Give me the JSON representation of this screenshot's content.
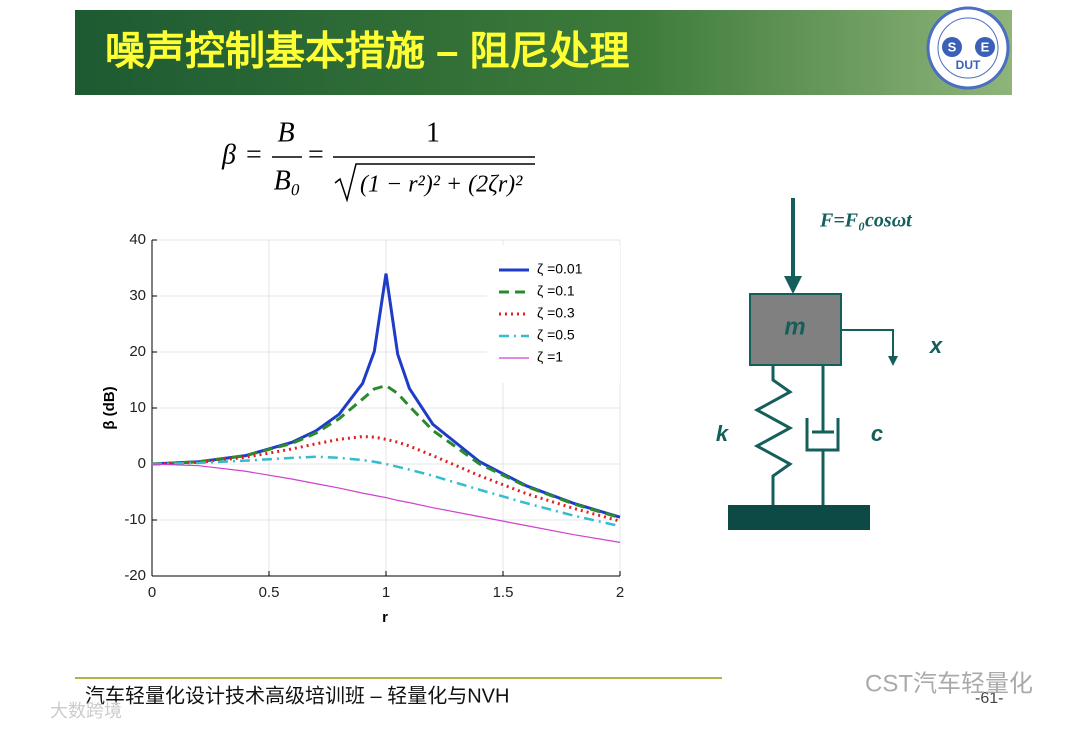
{
  "slide": {
    "title": "噪声控制基本措施 – 阻尼处理",
    "logo": "DUT",
    "logo_s": "S",
    "logo_e": "E",
    "footer": "汽车轻量化设计技术高级培训班 – 轻量化与NVH",
    "page": "-61-",
    "watermark": "CST汽车轻量化",
    "watermark2": "大数跨境"
  },
  "formula": {
    "lhs": "β",
    "eq": "=",
    "num1": "B",
    "den1": "B₀",
    "num2": "1",
    "den2": "(1 − r²)² + (2ζr)²"
  },
  "diagram": {
    "force": "F=F₀cosωt",
    "mass": "m",
    "displacement": "x",
    "spring": "k",
    "damper": "c"
  },
  "chart_data": {
    "type": "line",
    "xlabel": "r",
    "ylabel": "β (dB)",
    "x": [
      0,
      0.2,
      0.4,
      0.6,
      0.7,
      0.8,
      0.9,
      0.95,
      1,
      1.05,
      1.1,
      1.2,
      1.4,
      1.6,
      1.8,
      2
    ],
    "series": [
      {
        "name": "ζ =0.01",
        "color": "#1f3cc8",
        "dash": "solid",
        "values": [
          0,
          0.4,
          1.5,
          3.9,
          5.9,
          8.9,
          14.4,
          20.1,
          34.0,
          19.6,
          13.5,
          7.1,
          0.4,
          -3.9,
          -7.0,
          -9.5
        ]
      },
      {
        "name": "ζ =0.1",
        "color": "#2b8a2b",
        "dash": "dashed",
        "values": [
          0,
          0.4,
          1.5,
          3.7,
          5.5,
          8.1,
          11.6,
          13.4,
          14.0,
          12.6,
          10.3,
          6.0,
          0,
          -4.0,
          -7.1,
          -9.6
        ]
      },
      {
        "name": "ζ =0.3",
        "color": "#e02020",
        "dash": "dotted",
        "values": [
          0,
          0.3,
          1.2,
          2.7,
          3.6,
          4.4,
          4.9,
          4.8,
          4.4,
          3.9,
          3.2,
          1.5,
          -2.1,
          -5.3,
          -7.9,
          -10.2
        ]
      },
      {
        "name": "ζ =0.5",
        "color": "#33bccc",
        "dash": "dashdot",
        "values": [
          0,
          0.2,
          0.6,
          1.1,
          1.3,
          1.1,
          0.7,
          0.4,
          0,
          -0.5,
          -1.0,
          -2.1,
          -4.6,
          -7.0,
          -9.2,
          -11.1
        ]
      },
      {
        "name": "ζ =1",
        "color": "#d040d0",
        "dash": "thin",
        "values": [
          0,
          -0.3,
          -1.3,
          -2.7,
          -3.5,
          -4.3,
          -5.2,
          -5.6,
          -6.0,
          -6.5,
          -6.9,
          -7.8,
          -9.4,
          -11.0,
          -12.6,
          -14.0
        ]
      }
    ],
    "xlim": [
      0,
      2
    ],
    "xticks": [
      0,
      0.5,
      1,
      1.5,
      2
    ],
    "ylim": [
      -20,
      40
    ],
    "yticks": [
      -20,
      -10,
      0,
      10,
      20,
      30,
      40
    ],
    "grid": true,
    "legend": "upper right"
  }
}
